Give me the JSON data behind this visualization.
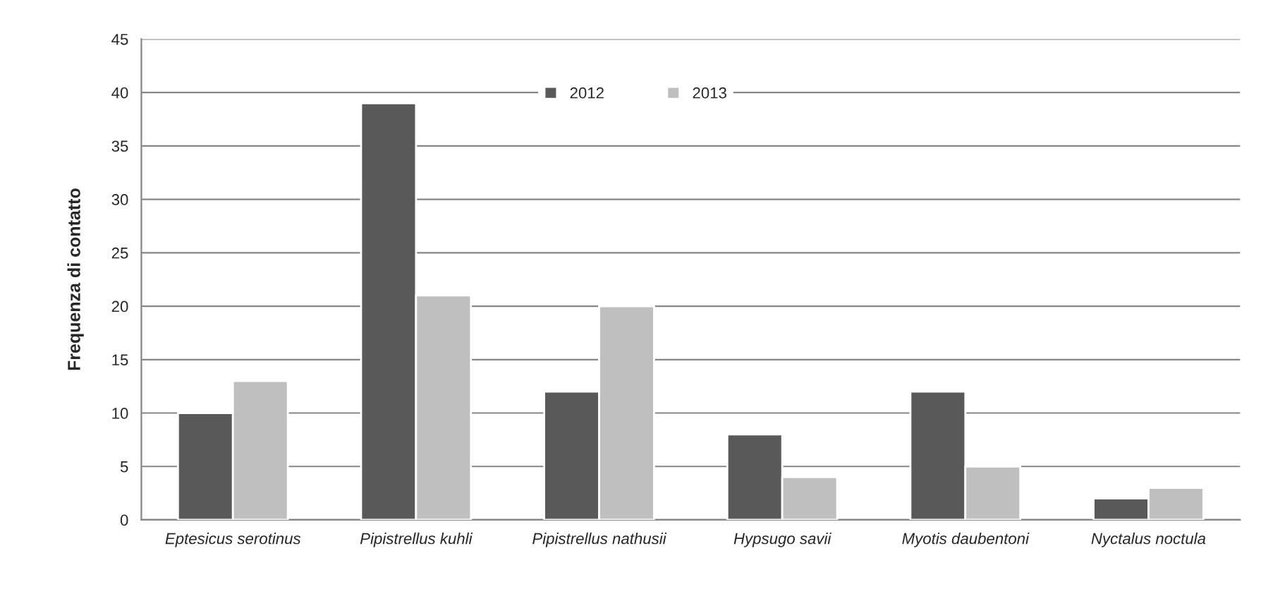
{
  "chart_data": {
    "type": "bar",
    "ylabel": "Frequenza di contatto",
    "categories": [
      "Eptesicus serotinus",
      "Pipistrellus kuhli",
      "Pipistrellus nathusii",
      "Hypsugo savii",
      "Myotis daubentoni",
      "Nyctalus noctula"
    ],
    "series": [
      {
        "name": "2012",
        "color": "#595959",
        "values": [
          10,
          39,
          12,
          8,
          12,
          2
        ]
      },
      {
        "name": "2013",
        "color": "#bfbfbf",
        "values": [
          13,
          21,
          20,
          4,
          5,
          3
        ]
      }
    ],
    "ylim": [
      0,
      45
    ],
    "yticks": [
      0,
      5,
      10,
      15,
      20,
      25,
      30,
      35,
      40,
      45
    ],
    "grid": "y",
    "legend": "top"
  }
}
